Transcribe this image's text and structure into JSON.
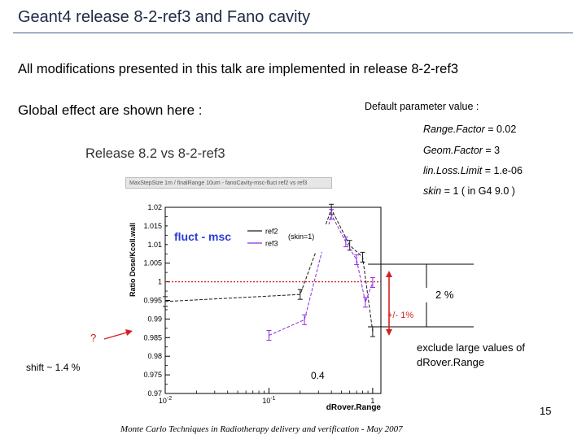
{
  "slide": {
    "title": "Geant4 release 8-2-ref3 and Fano cavity",
    "subtitle": "All modifications presented in this talk are implemented in release 8-2-ref3",
    "global_effect": "Global effect are shown here :",
    "release_label": "Release 8.2 vs 8-2-ref3",
    "page_number": "15",
    "footer": "Monte Carlo Techniques in Radiotherapy delivery and verification - May 2007"
  },
  "parameters": {
    "heading": "Default parameter value :",
    "items": [
      {
        "name": "Range.Factor",
        "value": " = 0.02"
      },
      {
        "name": "Geom.Factor",
        "value": " = 3"
      },
      {
        "name": "lin.Loss.Limit",
        "value": " = 1.e-06"
      },
      {
        "name": "skin",
        "value": " = 1    ( in G4 9.0 )"
      }
    ]
  },
  "chart_header": "MaxStepSize 1m / finalRange 10um - fanoCavity-msc-fluct ref2 vs ref3",
  "annotations": {
    "question": "?",
    "shift": "shift ~ 1.4 %",
    "two_percent": "2 %",
    "plus_minus": "+/- 1%",
    "exclude": "exclude large values of",
    "exclude_line2": "dRover.Range",
    "x_marker": "0.4"
  },
  "chart_data": {
    "type": "line",
    "title": "",
    "ylabel": "Ratio Dose/Kcoll.wall",
    "xlabel": "dRover.Range",
    "x_scale": "log",
    "xlim": [
      0.01,
      1.2
    ],
    "ylim": [
      0.97,
      1.02
    ],
    "y_ticks": [
      "1.02",
      "1.015",
      "1.01",
      "1.005",
      "1",
      "0.995",
      "0.99",
      "0.985",
      "0.98",
      "0.975",
      "0.97"
    ],
    "x_ticks": [
      "10^-2",
      "10^-1",
      "1"
    ],
    "legend_title": "fluct - msc",
    "legend_note": "(skin=1)",
    "legend_position": "top-left",
    "reference_line": 1.0,
    "series": [
      {
        "name": "ref2",
        "color": "#1a1a1a",
        "style": "dashed",
        "points": [
          [
            0.01,
            0.9947
          ],
          [
            0.2,
            0.9966
          ],
          [
            0.4,
            1.0195
          ],
          [
            0.6,
            1.0098
          ],
          [
            0.8,
            1.0066
          ],
          [
            1.0,
            0.9866
          ]
        ]
      },
      {
        "name": "ref3",
        "color": "#8a2be2",
        "style": "dashed",
        "points": [
          [
            0.1,
            0.9856
          ],
          [
            0.22,
            0.9898
          ],
          [
            0.4,
            1.0181
          ],
          [
            0.55,
            1.0107
          ],
          [
            0.7,
            1.0059
          ],
          [
            0.85,
            0.9945
          ],
          [
            1.0,
            0.9998
          ]
        ]
      }
    ]
  },
  "colors": {
    "reference_line": "#d62020",
    "arrow": "#d62020",
    "ref2": "#1a1a1a",
    "ref3": "#8a2be2",
    "legend_title": "#2a3ed0"
  }
}
